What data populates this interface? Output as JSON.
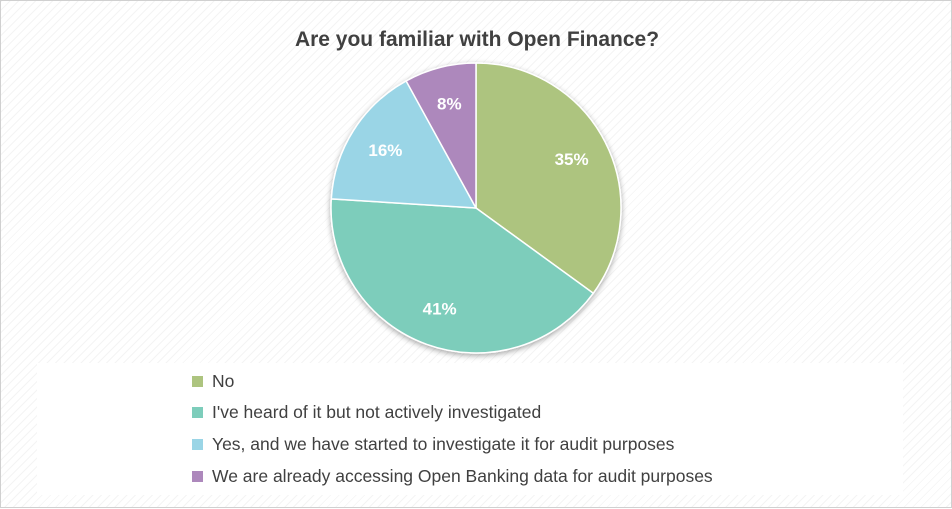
{
  "chart_data": {
    "type": "pie",
    "title": "Are you familiar with Open Finance?",
    "categories": [
      "No",
      "I've heard of it but not actively investigated",
      "Yes, and we have started to investigate it for audit purposes",
      "We are already accessing Open Banking data for audit purposes"
    ],
    "values": [
      35,
      41,
      16,
      8
    ],
    "labels": [
      "35%",
      "41%",
      "16%",
      "8%"
    ],
    "colors": [
      "#adc47f",
      "#7dcdbb",
      "#9ad5e6",
      "#ad88bc"
    ],
    "legend_position": "bottom"
  }
}
